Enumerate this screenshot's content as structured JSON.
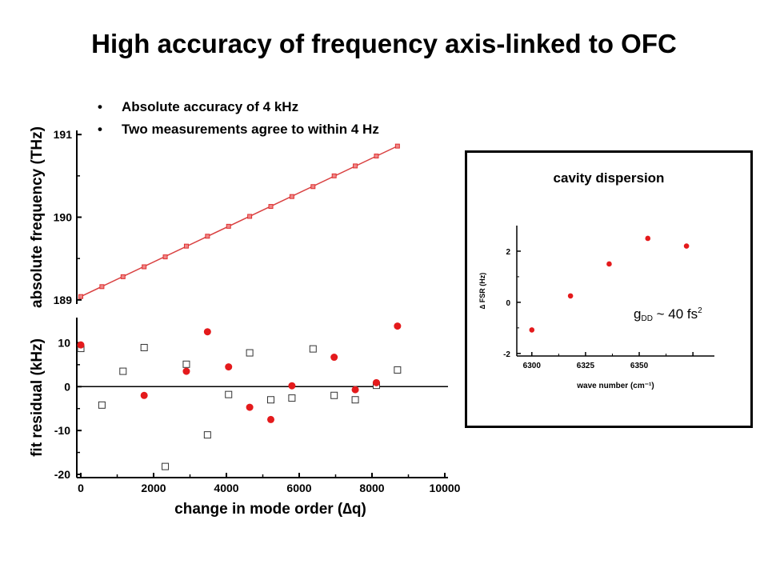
{
  "slide": {
    "title": "High accuracy of frequency axis-linked to OFC",
    "bullets": [
      "Absolute accuracy of 4 kHz",
      "Two measurements agree to within 4 Hz"
    ]
  },
  "chart_data": [
    {
      "type": "line",
      "title": "",
      "xlabel": "",
      "ylabel": "absolute frequency (THz)",
      "xlim": [
        0,
        10000
      ],
      "ylim": [
        188.95,
        191.05
      ],
      "yticks": [
        189,
        190,
        191
      ],
      "ytick_labels": [
        "189",
        "190",
        "191"
      ],
      "fit_line": {
        "x": [
          0,
          8700
        ],
        "y": [
          189.04,
          190.86
        ]
      },
      "series": [
        {
          "color": "#e03030",
          "x": [
            0,
            580,
            1160,
            1740,
            2320,
            2900,
            3480,
            4060,
            4640,
            5220,
            5800,
            6380,
            6960,
            7540,
            8120,
            8700
          ],
          "y": [
            189.04,
            189.16,
            189.28,
            189.4,
            189.52,
            189.65,
            189.77,
            189.89,
            190.01,
            190.13,
            190.25,
            190.37,
            190.5,
            190.62,
            190.74,
            190.86
          ]
        }
      ],
      "grid": false
    },
    {
      "type": "scatter",
      "title": "",
      "xlabel": "change in mode order (∆q)",
      "ylabel": "fit residual (kHz)",
      "xlim": [
        0,
        10000
      ],
      "ylim": [
        -20,
        15
      ],
      "xticks": [
        0,
        2000,
        4000,
        6000,
        8000,
        10000
      ],
      "xtick_labels": [
        "0",
        "2000",
        "4000",
        "6000",
        "8000",
        "10000"
      ],
      "yticks": [
        -20,
        -10,
        0,
        10
      ],
      "ytick_labels": [
        "-20",
        "-10",
        "0",
        "10"
      ],
      "zero_line": true,
      "series": [
        {
          "marker": "filled-circle",
          "color": "#e41a1c",
          "x": [
            0,
            1740,
            2900,
            3480,
            4060,
            4640,
            5220,
            5800,
            6960,
            7540,
            8120,
            8700
          ],
          "y": [
            9.5,
            -2,
            3.5,
            12.5,
            4.5,
            -4.7,
            -7.5,
            0.2,
            6.7,
            -0.7,
            0.9,
            13.8
          ]
        },
        {
          "marker": "open-square",
          "color": "#333333",
          "x": [
            0,
            580,
            1160,
            1740,
            2320,
            2900,
            3480,
            4060,
            4640,
            5220,
            5800,
            6380,
            6960,
            7540,
            8120,
            8700
          ],
          "y": [
            8.7,
            -4.2,
            3.5,
            8.9,
            -18.2,
            5.1,
            -11,
            -1.8,
            7.7,
            -3,
            -2.6,
            8.6,
            -2,
            -3,
            0.3,
            3.8
          ]
        }
      ],
      "grid": false
    },
    {
      "type": "scatter",
      "title": "cavity dispersion",
      "xlabel": "wave number (cm⁻¹)",
      "ylabel": "∆ FSR (Hz)",
      "xlim": [
        6293,
        6385
      ],
      "ylim": [
        -2.1,
        3
      ],
      "xticks": [
        6300,
        6325,
        6350
      ],
      "xtick_labels": [
        "6300",
        "6325",
        "6350"
      ],
      "yticks": [
        -2,
        0,
        2
      ],
      "ytick_labels": [
        "-2",
        "0",
        "2"
      ],
      "annotation": {
        "g": "g",
        "sub": "DD",
        "text": " ~ 40 fs",
        "sup": "2"
      },
      "series": [
        {
          "marker": "filled-circle",
          "color": "#e41a1c",
          "x": [
            6300,
            6318,
            6336,
            6354,
            6372
          ],
          "y": [
            -1.08,
            0.25,
            1.5,
            2.5,
            2.2
          ]
        }
      ],
      "grid": false
    }
  ]
}
